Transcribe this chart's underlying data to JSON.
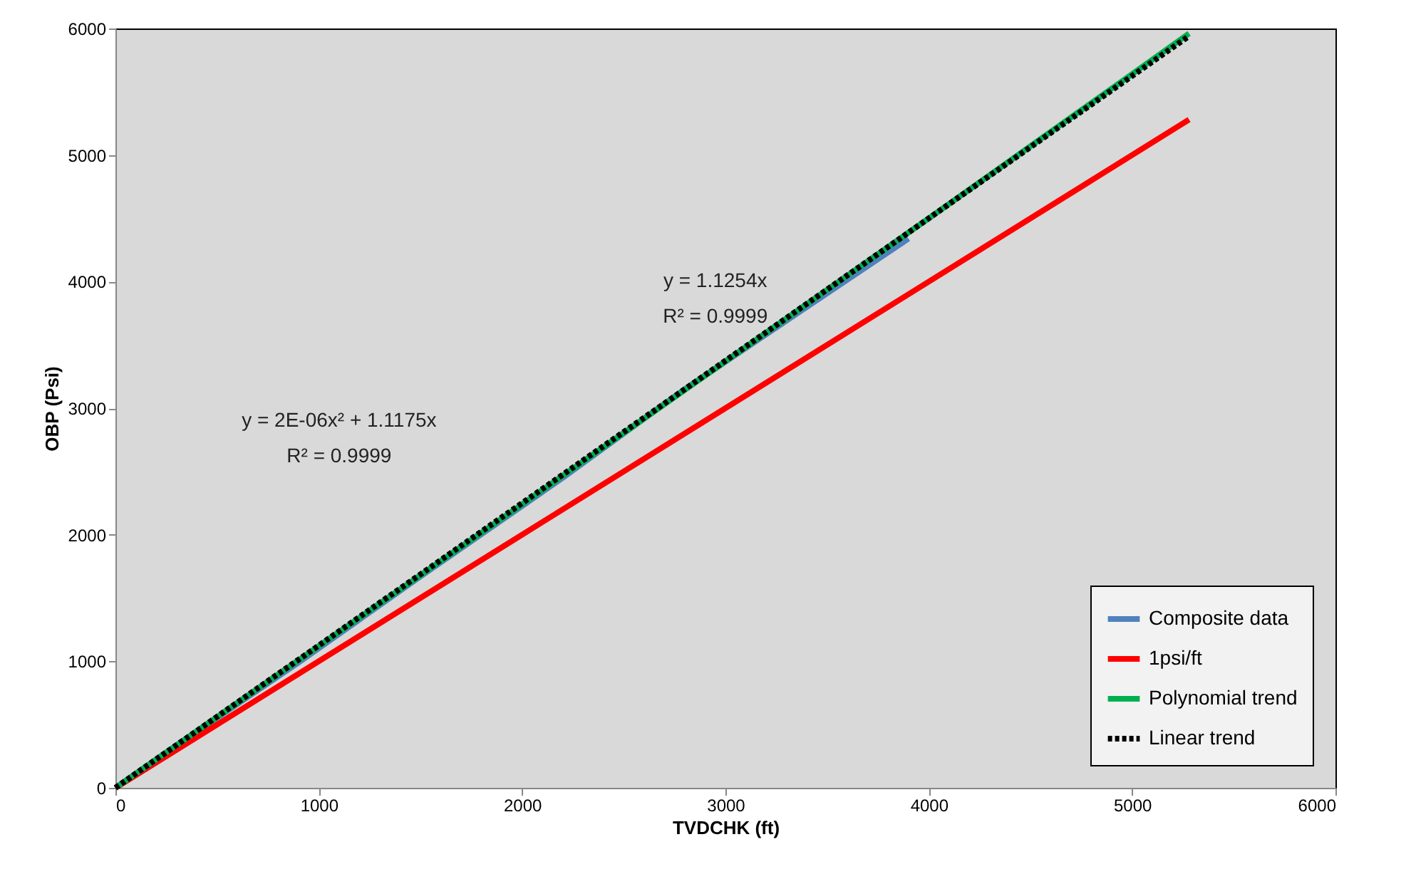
{
  "chart_data": {
    "type": "line",
    "xlabel": "TVDCHK (ft)",
    "ylabel": "OBP (Psi)",
    "xlim": [
      0,
      6000
    ],
    "xticks": [
      0,
      1000,
      2000,
      3000,
      4000,
      5000,
      6000
    ],
    "ylim": [
      0,
      6000
    ],
    "yticks": [
      0,
      1000,
      2000,
      3000,
      4000,
      5000,
      6000
    ],
    "legend": "bottom right",
    "marker": "none",
    "annotations": [
      "y = 2E-06x² + 1.1175x",
      "R² = 0.9999",
      "y = 1.1254x",
      "R² = 0.9999"
    ],
    "series": [
      {
        "name": "Composite data",
        "color": "#4f81bd",
        "x": [
          0,
          350,
          900,
          1500,
          2200,
          2800,
          3400,
          3900
        ],
        "values": [
          0,
          390,
          990,
          1670,
          2450,
          3150,
          3800,
          4340
        ]
      },
      {
        "name": "1psi/ft",
        "color": "#ff0000",
        "x": [
          0,
          5280
        ],
        "values": [
          0,
          5280
        ]
      },
      {
        "name": "Polynomial trend",
        "color": "#00b050",
        "x": [
          0,
          1000,
          2000,
          3000,
          4000,
          5000,
          5280
        ],
        "values": [
          0,
          1120,
          2240,
          3370,
          4500,
          5640,
          5960
        ]
      },
      {
        "name": "Linear trend",
        "color": "#000000",
        "line_style": "dashed",
        "x": [
          0,
          5280
        ],
        "values": [
          0,
          5940
        ]
      }
    ]
  }
}
